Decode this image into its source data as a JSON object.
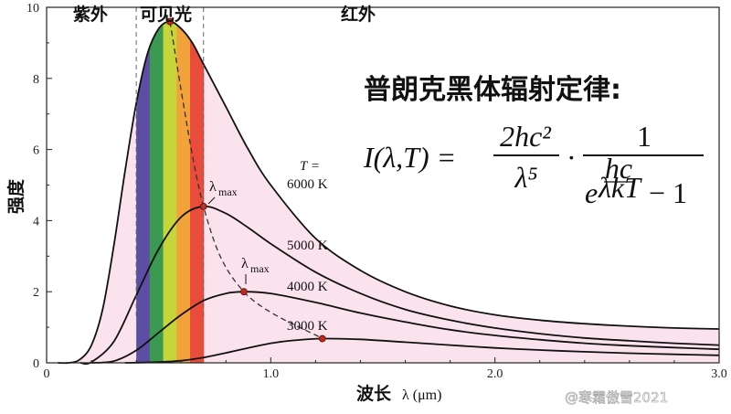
{
  "chart_data": {
    "type": "line",
    "title": "",
    "xlabel": "波长",
    "xlabel_unit": "λ (μm)",
    "ylabel": "强度",
    "xlim": [
      0,
      3.0
    ],
    "ylim": [
      0,
      10
    ],
    "x_ticks": [
      "0",
      "1.0",
      "2.0",
      "3.0"
    ],
    "y_ticks": [
      "0",
      "2",
      "4",
      "6",
      "8",
      "10"
    ],
    "regions": {
      "uv": "紫外",
      "visible": "可见光",
      "ir": "红外",
      "visible_range": [
        0.4,
        0.7
      ]
    },
    "spectrum_colors": [
      "#5b4ea3",
      "#3a9a52",
      "#c6d63a",
      "#f2a23a",
      "#e94c3b"
    ],
    "fill_color": "#fbe3ee",
    "temperature_symbol": "T =",
    "series": [
      {
        "name": "6000 K",
        "peak_x": 0.55,
        "peak_y": 9.6,
        "x": [
          0.05,
          0.1,
          0.15,
          0.2,
          0.25,
          0.3,
          0.35,
          0.4,
          0.45,
          0.5,
          0.55,
          0.6,
          0.65,
          0.7,
          0.8,
          0.9,
          1.0,
          1.2,
          1.4,
          1.6,
          1.8,
          2.0,
          2.2,
          2.4,
          2.6,
          2.8,
          3.0
        ],
        "y": [
          0,
          0,
          0.1,
          0.5,
          1.5,
          3.3,
          5.4,
          7.3,
          8.7,
          9.4,
          9.6,
          9.4,
          9.0,
          8.4,
          7.2,
          6.0,
          5.0,
          3.5,
          2.6,
          2.0,
          1.6,
          1.35,
          1.2,
          1.1,
          1.03,
          0.98,
          0.95
        ]
      },
      {
        "name": "5000 K",
        "peak_x": 0.7,
        "peak_y": 4.4,
        "x": [
          0.15,
          0.2,
          0.3,
          0.4,
          0.5,
          0.6,
          0.7,
          0.8,
          0.9,
          1.0,
          1.2,
          1.4,
          1.6,
          1.8,
          2.0,
          2.2,
          2.4,
          2.6,
          2.8,
          3.0
        ],
        "y": [
          0,
          0.02,
          0.6,
          1.9,
          3.2,
          4.1,
          4.4,
          4.2,
          3.8,
          3.35,
          2.55,
          1.95,
          1.5,
          1.2,
          0.98,
          0.82,
          0.7,
          0.62,
          0.55,
          0.5
        ]
      },
      {
        "name": "4000 K",
        "peak_x": 0.88,
        "peak_y": 2.0,
        "x": [
          0.2,
          0.3,
          0.4,
          0.5,
          0.6,
          0.7,
          0.8,
          0.88,
          1.0,
          1.2,
          1.4,
          1.6,
          1.8,
          2.0,
          2.2,
          2.4,
          2.6,
          2.8,
          3.0
        ],
        "y": [
          0,
          0.05,
          0.35,
          0.85,
          1.35,
          1.75,
          1.95,
          2.0,
          1.95,
          1.7,
          1.4,
          1.15,
          0.93,
          0.77,
          0.65,
          0.55,
          0.48,
          0.43,
          0.38
        ]
      },
      {
        "name": "3000 K",
        "peak_x": 1.23,
        "peak_y": 0.68,
        "x": [
          0.35,
          0.5,
          0.6,
          0.7,
          0.8,
          0.9,
          1.0,
          1.1,
          1.23,
          1.4,
          1.6,
          1.8,
          2.0,
          2.2,
          2.4,
          2.6,
          2.8,
          3.0
        ],
        "y": [
          0,
          0.02,
          0.06,
          0.15,
          0.28,
          0.42,
          0.55,
          0.63,
          0.68,
          0.66,
          0.58,
          0.5,
          0.42,
          0.36,
          0.31,
          0.27,
          0.24,
          0.21
        ]
      }
    ],
    "lambda_max_label": "λ",
    "lambda_max_sub": "max"
  },
  "law": {
    "title": "普朗克黑体辐射定律:",
    "lhs": "I(λ,T) =",
    "num": "2hc²",
    "den": "λ⁵",
    "dot": "·",
    "num2": "1",
    "exp_num": "hc",
    "exp_den": "λkT",
    "base": "e",
    "minus_one": "− 1"
  },
  "watermark": "@寒霜傲雪2021"
}
